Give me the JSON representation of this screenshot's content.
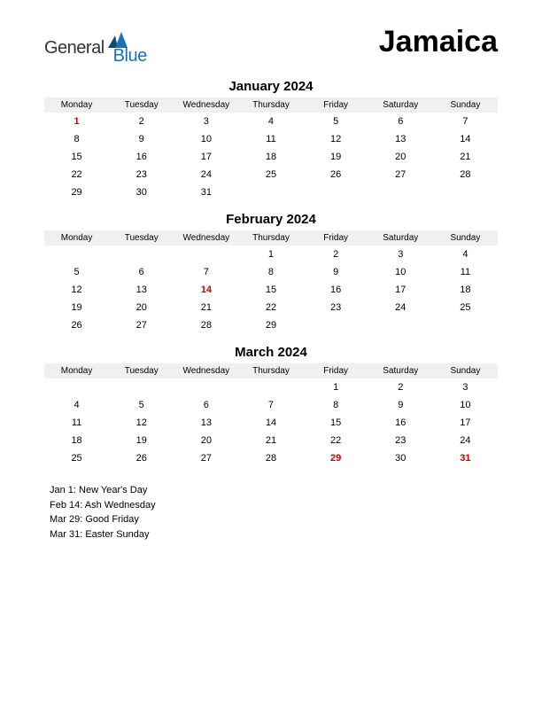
{
  "logo": {
    "general": "General",
    "blue": "Blue"
  },
  "country": "Jamaica",
  "dow_labels": [
    "Monday",
    "Tuesday",
    "Wednesday",
    "Thursday",
    "Friday",
    "Saturday",
    "Sunday"
  ],
  "colors": {
    "holiday": "#cc0000",
    "header_bg": "#f0f0f0",
    "text": "#000000",
    "logo_blue": "#1a6fb5",
    "logo_dark": "#0d4b7a",
    "background": "#ffffff"
  },
  "typography": {
    "country_fontsize": 34,
    "month_title_fontsize": 15,
    "dow_fontsize": 10,
    "day_fontsize": 11,
    "holiday_list_fontsize": 11
  },
  "months": [
    {
      "title": "January 2024",
      "lead_blanks": 0,
      "days": 31,
      "holidays": [
        1
      ]
    },
    {
      "title": "February 2024",
      "lead_blanks": 3,
      "days": 29,
      "holidays": [
        14
      ]
    },
    {
      "title": "March 2024",
      "lead_blanks": 4,
      "days": 31,
      "holidays": [
        29,
        31
      ]
    }
  ],
  "holiday_list": [
    "Jan 1: New Year's Day",
    "Feb 14: Ash Wednesday",
    "Mar 29: Good Friday",
    "Mar 31: Easter Sunday"
  ]
}
